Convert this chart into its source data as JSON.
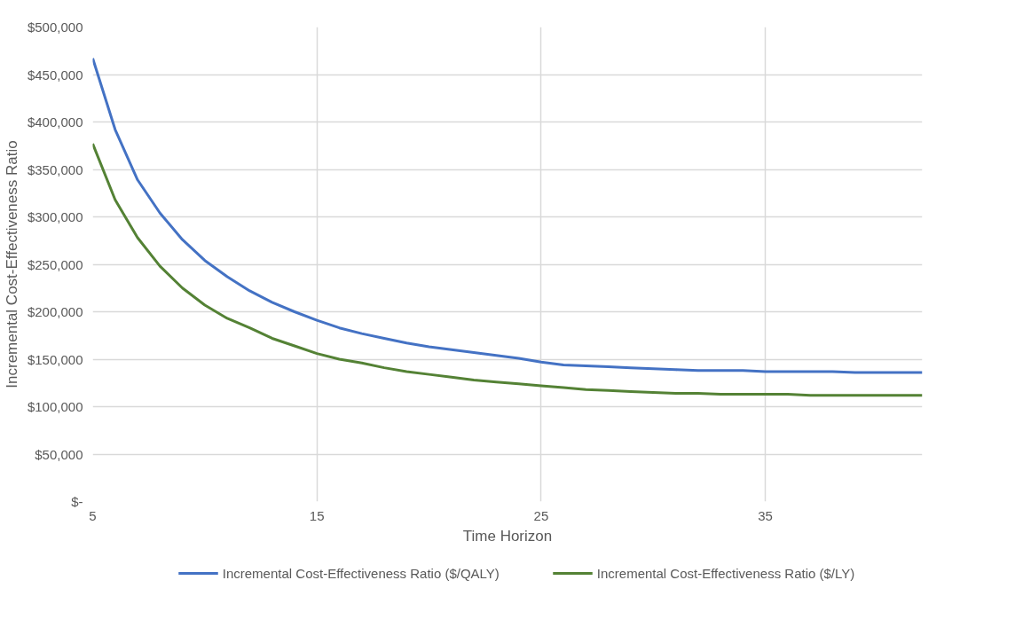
{
  "chart_data": {
    "type": "line",
    "xlabel": "Time Horizon",
    "ylabel": "Incremental Cost-Effectiveness Ratio",
    "x": [
      5,
      6,
      7,
      8,
      9,
      10,
      11,
      12,
      13,
      14,
      15,
      16,
      17,
      18,
      19,
      20,
      21,
      22,
      23,
      24,
      25,
      26,
      27,
      28,
      29,
      30,
      31,
      32,
      33,
      34,
      35,
      36,
      37,
      38,
      39,
      40,
      41,
      42
    ],
    "series": [
      {
        "name": "Incremental Cost-Effectiveness Ratio ($/QALY)",
        "color": "#4472c4",
        "values": [
          467000,
          392000,
          339000,
          304000,
          276000,
          254000,
          237000,
          222000,
          210000,
          200000,
          191000,
          183000,
          177000,
          172000,
          167000,
          163000,
          160000,
          157000,
          154000,
          151000,
          147000,
          144000,
          143000,
          142000,
          141000,
          140000,
          139000,
          138000,
          138000,
          138000,
          137000,
          137000,
          137000,
          137000,
          136000,
          136000,
          136000,
          136000
        ]
      },
      {
        "name": "Incremental Cost-Effectiveness Ratio ($/LY)",
        "color": "#548235",
        "values": [
          377000,
          318000,
          278000,
          248000,
          225000,
          207000,
          193000,
          183000,
          172000,
          164000,
          156000,
          150000,
          146000,
          141000,
          137000,
          134000,
          131000,
          128000,
          126000,
          124000,
          122000,
          120000,
          118000,
          117000,
          116000,
          115000,
          114000,
          114000,
          113000,
          113000,
          113000,
          113000,
          112000,
          112000,
          112000,
          112000,
          112000,
          112000
        ]
      }
    ],
    "xlim": [
      5,
      42
    ],
    "xticks": [
      5,
      15,
      25,
      35
    ],
    "ylim": [
      0,
      500000
    ],
    "yticks": [
      {
        "value": 0,
        "label": "$-"
      },
      {
        "value": 50000,
        "label": "$50,000"
      },
      {
        "value": 100000,
        "label": "$100,000"
      },
      {
        "value": 150000,
        "label": "$150,000"
      },
      {
        "value": 200000,
        "label": "$200,000"
      },
      {
        "value": 250000,
        "label": "$250,000"
      },
      {
        "value": 300000,
        "label": "$300,000"
      },
      {
        "value": 350000,
        "label": "$350,000"
      },
      {
        "value": 400000,
        "label": "$400,000"
      },
      {
        "value": 450000,
        "label": "$450,000"
      },
      {
        "value": 500000,
        "label": "$500,000"
      }
    ],
    "grid": true,
    "legend": "bottom",
    "marker": "none",
    "line_style": "solid"
  }
}
